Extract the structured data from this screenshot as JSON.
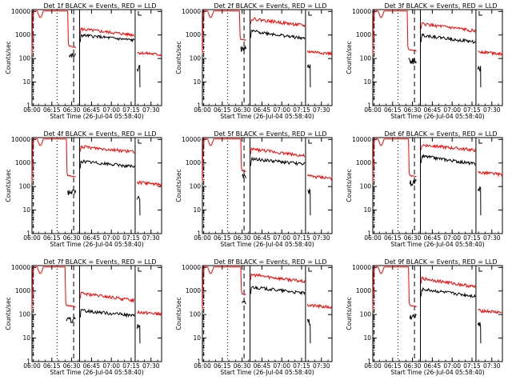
{
  "figure": {
    "xlabel": "Start Time (26-Jul-04 05:58:40)",
    "ylabel": "Counts/sec",
    "x_tick_labels": [
      "06:00",
      "06:15",
      "06:30",
      "06:45",
      "07:00",
      "07:15",
      "07:30"
    ],
    "y_tick_labels": [
      "1",
      "10",
      "100",
      "1000",
      "10000"
    ]
  },
  "chart_data": [
    {
      "type": "line",
      "title": "Det 1f BLACK = Events, RED = LLD",
      "xlabel": "Start Time (26-Jul-04 05:58:40)",
      "ylabel": "Counts/sec",
      "yscale": "log",
      "ylim": [
        1,
        12000
      ],
      "xlim": [
        "06:00",
        "07:38"
      ],
      "profile": {
        "lld_saturated_until": "06:27",
        "lld_plateau": 350,
        "event_plateau": 130,
        "gap_start": "06:33",
        "lld_after_gap": 1800,
        "events_after_gap": 1000,
        "lld_end": 1000,
        "events_end": 600,
        "lld_last_segment": 180,
        "events_last_segment": 40
      },
      "series": [
        {
          "name": "Events",
          "color": "#000000"
        },
        {
          "name": "LLD",
          "color": "#ff0000"
        }
      ]
    },
    {
      "type": "line",
      "title": "Det 2f BLACK = Events, RED = LLD",
      "xlabel": "Start Time (26-Jul-04 05:58:40)",
      "ylabel": "Counts/sec",
      "yscale": "log",
      "ylim": [
        1,
        12000
      ],
      "xlim": [
        "06:00",
        "07:38"
      ],
      "profile": {
        "lld_saturated_until": "06:28",
        "lld_plateau": 700,
        "event_plateau": 250,
        "gap_start": "06:33",
        "lld_after_gap": 5000,
        "events_after_gap": 1500,
        "lld_end": 2500,
        "events_end": 700,
        "lld_last_segment": 200,
        "events_last_segment": 50
      },
      "series": [
        {
          "name": "Events",
          "color": "#000000"
        },
        {
          "name": "LLD",
          "color": "#ff0000"
        }
      ]
    },
    {
      "type": "line",
      "title": "Det 3f BLACK = Events, RED = LLD",
      "xlabel": "Start Time (26-Jul-04 05:58:40)",
      "ylabel": "Counts/sec",
      "yscale": "log",
      "ylim": [
        1,
        12000
      ],
      "xlim": [
        "06:00",
        "07:38"
      ],
      "profile": {
        "lld_saturated_until": "06:26",
        "lld_plateau": 250,
        "event_plateau": 80,
        "gap_start": "06:33",
        "lld_after_gap": 3000,
        "events_after_gap": 1000,
        "lld_end": 1500,
        "events_end": 500,
        "lld_last_segment": 200,
        "events_last_segment": 40
      },
      "series": [
        {
          "name": "Events",
          "color": "#000000"
        },
        {
          "name": "LLD",
          "color": "#ff0000"
        }
      ]
    },
    {
      "type": "line",
      "title": "Det 4f BLACK = Events, RED = LLD",
      "xlabel": "Start Time (26-Jul-04 05:58:40)",
      "ylabel": "Counts/sec",
      "yscale": "log",
      "ylim": [
        1,
        12000
      ],
      "xlim": [
        "06:00",
        "07:38"
      ],
      "profile": {
        "lld_saturated_until": "06:26",
        "lld_plateau": 300,
        "event_plateau": 60,
        "gap_start": "06:33",
        "lld_after_gap": 5000,
        "events_after_gap": 1200,
        "lld_end": 3000,
        "events_end": 700,
        "lld_last_segment": 150,
        "events_last_segment": 30
      },
      "series": [
        {
          "name": "Events",
          "color": "#000000"
        },
        {
          "name": "LLD",
          "color": "#ff0000"
        }
      ]
    },
    {
      "type": "line",
      "title": "Det 5f BLACK = Events, RED = LLD",
      "xlabel": "Start Time (26-Jul-04 05:58:40)",
      "ylabel": "Counts/sec",
      "yscale": "log",
      "ylim": [
        1,
        12000
      ],
      "xlim": [
        "06:00",
        "07:38"
      ],
      "profile": {
        "lld_saturated_until": "06:29",
        "lld_plateau": 500,
        "event_plateau": 250,
        "gap_start": "06:33",
        "lld_after_gap": 4000,
        "events_after_gap": 1500,
        "lld_end": 2000,
        "events_end": 900,
        "lld_last_segment": 280,
        "events_last_segment": 60
      },
      "series": [
        {
          "name": "Events",
          "color": "#000000"
        },
        {
          "name": "LLD",
          "color": "#ff0000"
        }
      ]
    },
    {
      "type": "line",
      "title": "Det 6f BLACK = Events, RED = LLD",
      "xlabel": "Start Time (26-Jul-04 05:58:40)",
      "ylabel": "Counts/sec",
      "yscale": "log",
      "ylim": [
        1,
        12000
      ],
      "xlim": [
        "06:00",
        "07:38"
      ],
      "profile": {
        "lld_saturated_until": "06:27",
        "lld_plateau": 300,
        "event_plateau": 150,
        "gap_start": "06:33",
        "lld_after_gap": 6000,
        "events_after_gap": 2000,
        "lld_end": 3500,
        "events_end": 900,
        "lld_last_segment": 400,
        "events_last_segment": 80
      },
      "series": [
        {
          "name": "Events",
          "color": "#000000"
        },
        {
          "name": "LLD",
          "color": "#ff0000"
        }
      ]
    },
    {
      "type": "line",
      "title": "Det 7f BLACK = Events, RED = LLD",
      "xlabel": "Start Time (26-Jul-04 05:58:40)",
      "ylabel": "Counts/sec",
      "yscale": "log",
      "ylim": [
        1,
        12000
      ],
      "xlim": [
        "06:00",
        "07:38"
      ],
      "profile": {
        "lld_saturated_until": "06:25",
        "lld_plateau": 250,
        "event_plateau": 60,
        "gap_start": "06:33",
        "lld_after_gap": 800,
        "events_after_gap": 150,
        "lld_end": 400,
        "events_end": 90,
        "lld_last_segment": 130,
        "events_last_segment": 30
      },
      "series": [
        {
          "name": "Events",
          "color": "#000000"
        },
        {
          "name": "LLD",
          "color": "#ff0000"
        }
      ]
    },
    {
      "type": "line",
      "title": "Det 8f BLACK = Events, RED = LLD",
      "xlabel": "Start Time (26-Jul-04 05:58:40)",
      "ylabel": "Counts/sec",
      "yscale": "log",
      "ylim": [
        1,
        12000
      ],
      "xlim": [
        "06:00",
        "07:38"
      ],
      "profile": {
        "lld_saturated_until": "06:29",
        "lld_plateau": 800,
        "event_plateau": 300,
        "gap_start": "06:33",
        "lld_after_gap": 5000,
        "events_after_gap": 1500,
        "lld_end": 2500,
        "events_end": 800,
        "lld_last_segment": 250,
        "events_last_segment": 50
      },
      "series": [
        {
          "name": "Events",
          "color": "#000000"
        },
        {
          "name": "LLD",
          "color": "#ff0000"
        }
      ]
    },
    {
      "type": "line",
      "title": "Det 9f BLACK = Events, RED = LLD",
      "xlabel": "Start Time (26-Jul-04 05:58:40)",
      "ylabel": "Counts/sec",
      "yscale": "log",
      "ylim": [
        1,
        12000
      ],
      "xlim": [
        "06:00",
        "07:38"
      ],
      "profile": {
        "lld_saturated_until": "06:27",
        "lld_plateau": 250,
        "event_plateau": 80,
        "gap_start": "06:33",
        "lld_after_gap": 3500,
        "events_after_gap": 1200,
        "lld_end": 1500,
        "events_end": 600,
        "lld_last_segment": 150,
        "events_last_segment": 40
      },
      "series": [
        {
          "name": "Events",
          "color": "#000000"
        },
        {
          "name": "LLD",
          "color": "#ff0000"
        }
      ]
    }
  ]
}
